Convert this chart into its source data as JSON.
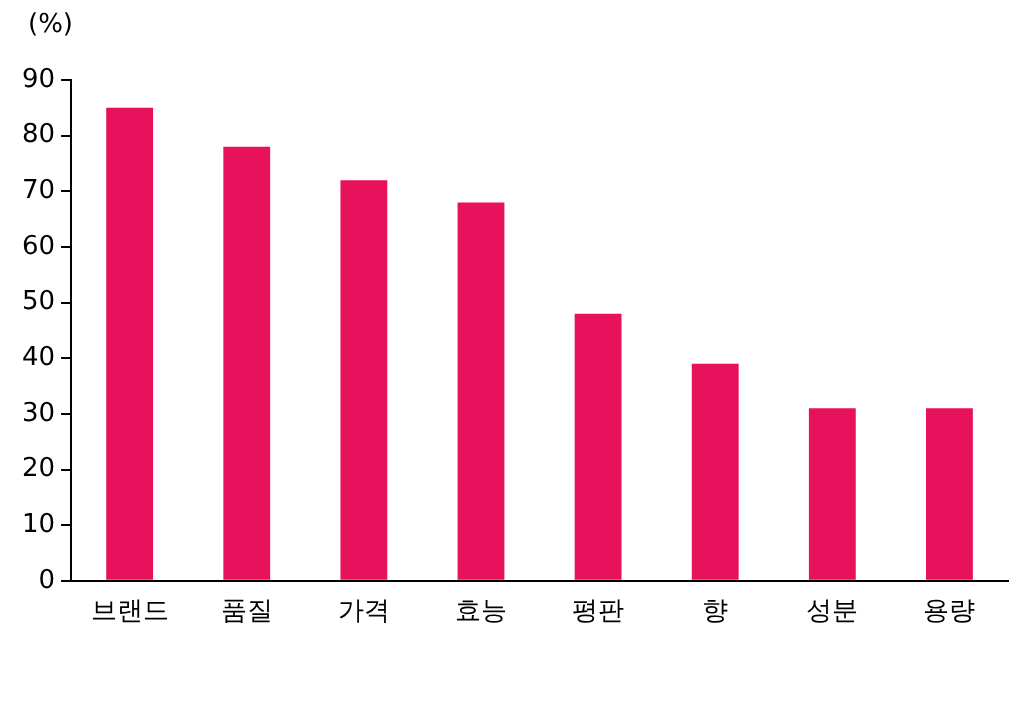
{
  "chart_data": {
    "type": "bar",
    "ylabel": "(%)",
    "categories": [
      "브랜드",
      "품질",
      "가격",
      "효능",
      "평판",
      "향",
      "성분",
      "용량"
    ],
    "values": [
      85,
      78,
      72,
      68,
      48,
      39,
      31,
      31
    ],
    "color": "#e8115b",
    "ylim": [
      0,
      90
    ],
    "yticks": [
      0,
      10,
      20,
      30,
      40,
      50,
      60,
      70,
      80,
      90
    ],
    "grid": false,
    "legend": false
  }
}
